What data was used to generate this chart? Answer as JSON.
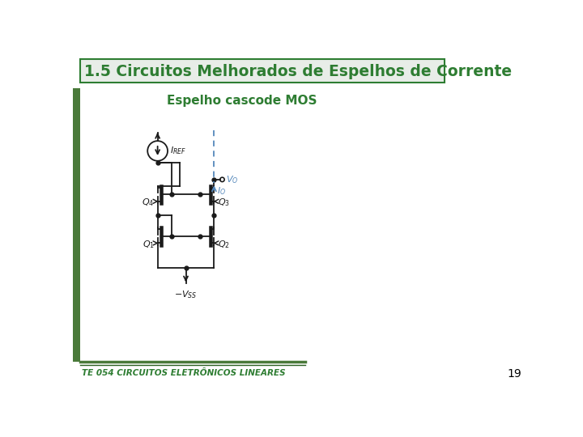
{
  "title": "1.5 Circuitos Melhorados de Espelhos de Corrente",
  "subtitle": "Espelho cascode MOS",
  "footer": "TE 054 CIRCUITOS ELETRÔNICOS LINEARES",
  "page_number": "19",
  "title_color": "#2E7D32",
  "title_bg": "#e8ede8",
  "title_border": "#2E7D32",
  "subtitle_color": "#2E7D32",
  "footer_color": "#2E7D32",
  "bg_color": "#ffffff",
  "left_bar_color": "#4a7a3a",
  "circuit_color": "#1a1a1a",
  "io_color": "#5588bb",
  "vss_label": "-V_{SS}",
  "iref_label": "I_{REF}",
  "io_label": "I_O",
  "vo_label": "V_O",
  "q1_label": "Q_1",
  "q2_label": "Q_2",
  "q3_label": "Q_3",
  "q4_label": "Q_4"
}
